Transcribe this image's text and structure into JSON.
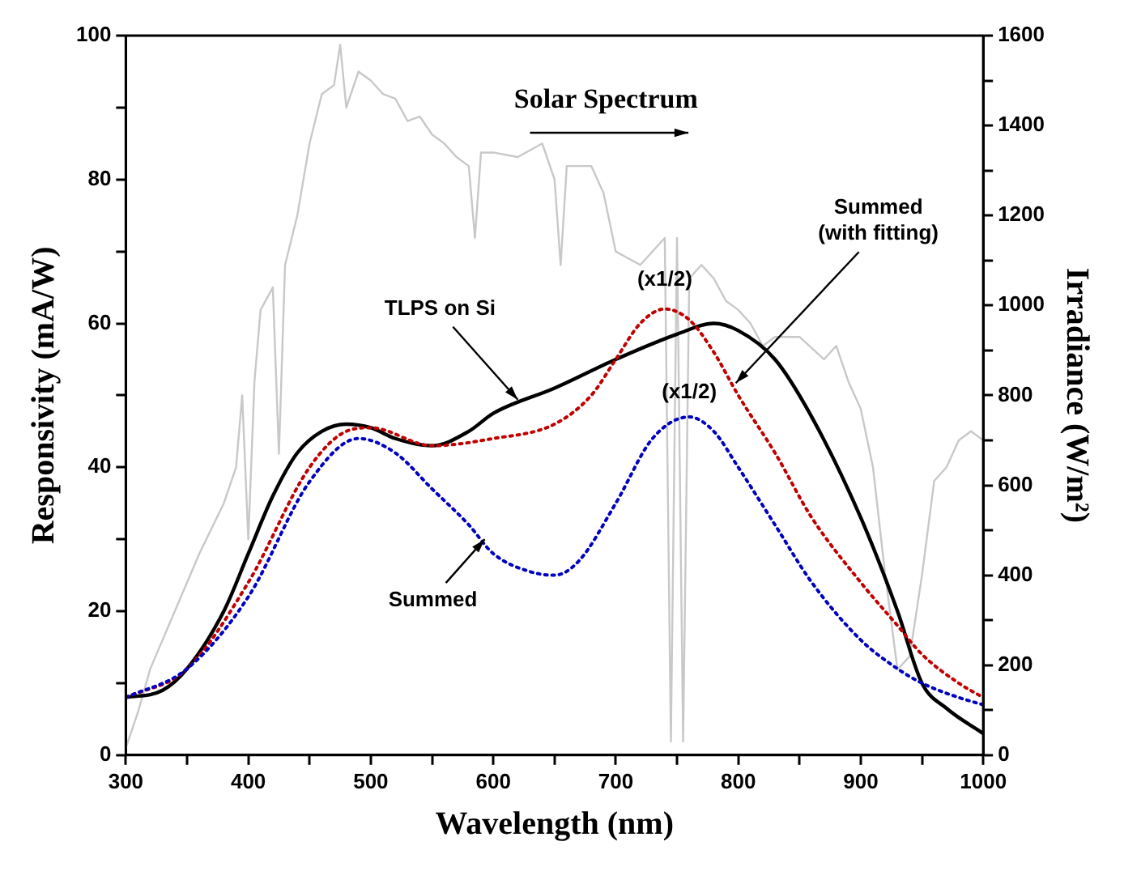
{
  "chart_data": {
    "type": "line",
    "xlabel": "Wavelength (nm)",
    "ylabel": "Responsivity (mA/W)",
    "y2label": "Irradiance (W/m²)",
    "xlim": [
      300,
      1000
    ],
    "xticks": [
      300,
      {
        "value": 350,
        "label": null
      },
      400,
      {
        "value": 450,
        "label": null
      },
      500,
      {
        "value": 550,
        "label": null
      },
      600,
      {
        "value": 650,
        "label": null
      },
      700,
      {
        "value": 750,
        "label": null
      },
      800,
      {
        "value": 850,
        "label": null
      },
      900,
      {
        "value": 950,
        "label": null
      },
      1000
    ],
    "ylim": [
      0,
      100
    ],
    "yticks": [
      0,
      {
        "value": 10,
        "label": null
      },
      20,
      {
        "value": 30,
        "label": null
      },
      40,
      {
        "value": 50,
        "label": null
      },
      60,
      {
        "value": 70,
        "label": null
      },
      80,
      {
        "value": 90,
        "label": null
      },
      100
    ],
    "y2lim": [
      0,
      1600
    ],
    "y2ticks": [
      0,
      {
        "value": 100,
        "label": null
      },
      200,
      {
        "value": 300,
        "label": null
      },
      400,
      {
        "value": 500,
        "label": null
      },
      600,
      {
        "value": 700,
        "label": null
      },
      800,
      {
        "value": 900,
        "label": null
      },
      1000,
      {
        "value": 1100,
        "label": null
      },
      1200,
      {
        "value": 1300,
        "label": null
      },
      1400,
      {
        "value": 1500,
        "label": null
      },
      1600
    ],
    "grid": false,
    "legend": false,
    "marker": "none",
    "series": [
      {
        "axis": "y2",
        "color": "#c8c8c8",
        "line_style": "solid",
        "x": [
          300,
          310,
          320,
          340,
          360,
          380,
          390,
          395,
          400,
          405,
          410,
          420,
          425,
          430,
          440,
          450,
          460,
          470,
          475,
          480,
          490,
          500,
          510,
          520,
          530,
          540,
          550,
          560,
          570,
          580,
          585,
          590,
          600,
          620,
          640,
          650,
          655,
          660,
          680,
          690,
          700,
          720,
          740,
          745,
          750,
          755,
          760,
          770,
          780,
          790,
          800,
          810,
          820,
          830,
          850,
          870,
          880,
          890,
          900,
          910,
          920,
          930,
          940,
          950,
          960,
          970,
          980,
          990,
          1000
        ],
        "values": [
          16,
          96,
          192,
          320,
          448,
          560,
          640,
          800,
          480,
          830,
          990,
          1040,
          670,
          1090,
          1200,
          1360,
          1470,
          1490,
          1580,
          1440,
          1520,
          1500,
          1470,
          1460,
          1410,
          1420,
          1380,
          1360,
          1330,
          1310,
          1150,
          1340,
          1340,
          1330,
          1360,
          1280,
          1090,
          1310,
          1310,
          1250,
          1120,
          1090,
          1150,
          30,
          1150,
          30,
          1060,
          1090,
          1060,
          1010,
          990,
          960,
          910,
          930,
          930,
          880,
          910,
          830,
          770,
          640,
          400,
          190,
          220,
          400,
          610,
          640,
          700,
          720,
          700
        ]
      },
      {
        "color": "#000000",
        "line_style": "solid",
        "x": [
          300,
          330,
          350,
          380,
          400,
          420,
          440,
          460,
          480,
          500,
          520,
          550,
          580,
          600,
          650,
          700,
          750,
          780,
          800,
          830,
          860,
          900,
          930,
          950,
          970,
          1000
        ],
        "values": [
          8,
          9,
          12,
          20,
          28,
          36,
          42,
          45,
          46,
          45.5,
          44,
          43,
          45,
          47.5,
          51,
          55,
          58.5,
          60,
          59,
          55,
          47,
          33,
          20,
          10,
          6.5,
          3
        ]
      },
      {
        "color": "#c00000",
        "line_style": "dotted",
        "x": [
          300,
          350,
          400,
          450,
          480,
          500,
          550,
          600,
          650,
          680,
          700,
          720,
          740,
          760,
          780,
          800,
          830,
          860,
          900,
          930,
          950,
          980,
          1000
        ],
        "values": [
          8,
          12,
          24,
          40,
          45,
          45.5,
          43,
          44,
          46,
          50,
          55,
          60,
          62,
          60.5,
          56,
          50,
          42,
          33,
          24,
          18,
          14,
          10,
          8
        ]
      },
      {
        "color": "#0000c0",
        "line_style": "dotted",
        "x": [
          300,
          350,
          400,
          450,
          490,
          520,
          550,
          580,
          600,
          630,
          650,
          670,
          700,
          730,
          760,
          780,
          800,
          830,
          860,
          900,
          930,
          950,
          980,
          1000
        ],
        "values": [
          8,
          12,
          22,
          38,
          44,
          42,
          37,
          32,
          28,
          25.5,
          25,
          27,
          35,
          44,
          47,
          45,
          40,
          32,
          24,
          16,
          12,
          10,
          8,
          7
        ]
      }
    ],
    "annotations": [
      "Solar Spectrum",
      {
        "text": "TLPS on Si",
        "x": 620,
        "y": 49.4
      },
      {
        "text": "Summed",
        "x": 593,
        "y": 30
      },
      {
        "text": "Summed\n(with fitting)",
        "x": 798,
        "y": 51.7
      },
      {
        "text": "(x1/2)",
        "x": 740,
        "y": 62
      },
      {
        "text": "(x1/2)",
        "x": 760,
        "y": 47
      }
    ]
  }
}
